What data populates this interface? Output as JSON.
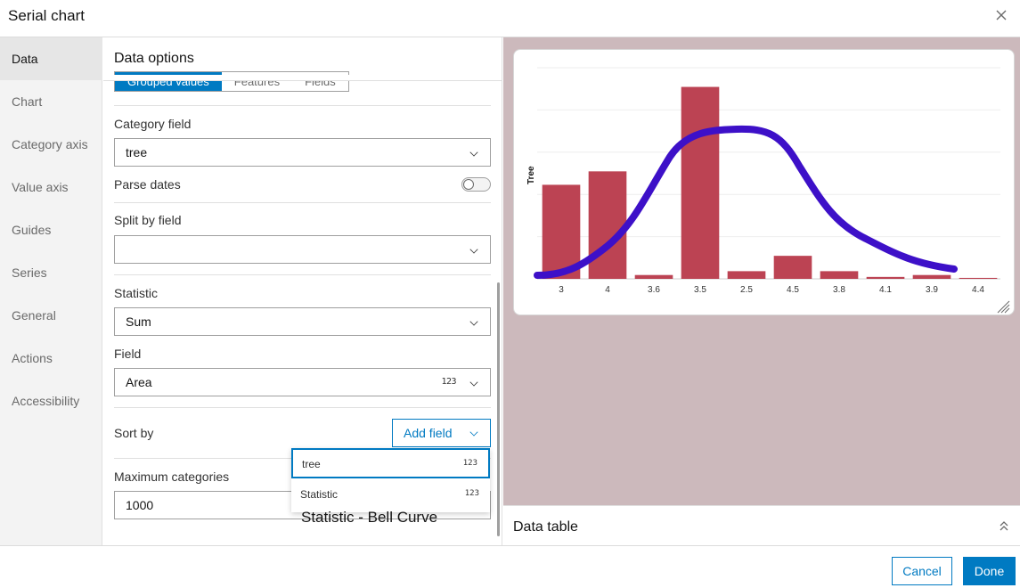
{
  "dialog": {
    "title": "Serial chart"
  },
  "nav": {
    "items": [
      {
        "label": "Data",
        "active": true
      },
      {
        "label": "Chart"
      },
      {
        "label": "Category axis"
      },
      {
        "label": "Value axis"
      },
      {
        "label": "Guides"
      },
      {
        "label": "Series"
      },
      {
        "label": "General"
      },
      {
        "label": "Actions"
      },
      {
        "label": "Accessibility"
      }
    ]
  },
  "panel": {
    "title": "Data options",
    "segments": [
      "Grouped values",
      "Features",
      "Fields"
    ],
    "category_field": {
      "label": "Category field",
      "value": "tree"
    },
    "parse_dates": {
      "label": "Parse dates",
      "on": false
    },
    "split_by_field": {
      "label": "Split by field",
      "value": ""
    },
    "statistic": {
      "label": "Statistic",
      "value": "Sum"
    },
    "field": {
      "label": "Field",
      "value": "Area",
      "type_icon": "123"
    },
    "sort_by": {
      "label": "Sort by",
      "button": "Add field"
    },
    "max_categories": {
      "label": "Maximum categories",
      "value": "1000"
    }
  },
  "dropdown": {
    "items": [
      {
        "label": "tree",
        "type_icon": "123",
        "selected": true
      },
      {
        "label": "Statistic",
        "type_icon": "123"
      }
    ]
  },
  "annotation": "Statistic - Bell Curve",
  "chart_data": {
    "type": "bar",
    "ylabel": "Tree",
    "xlabel": "",
    "categories": [
      "3",
      "4",
      "3.6",
      "3.5",
      "2.5",
      "4.5",
      "3.8",
      "4.1",
      "3.9",
      "4.4"
    ],
    "values": [
      49,
      56,
      2,
      100,
      4,
      12,
      4,
      1,
      2,
      0.5
    ],
    "ylim": [
      0,
      110
    ],
    "bar_color": "#bc4353",
    "overlay_curve_color": "#3d10c8",
    "grid": true
  },
  "data_table": {
    "title": "Data table"
  },
  "footer": {
    "cancel": "Cancel",
    "done": "Done"
  },
  "colors": {
    "accent": "#007ac2",
    "preview_bg": "#ccb9bc"
  }
}
